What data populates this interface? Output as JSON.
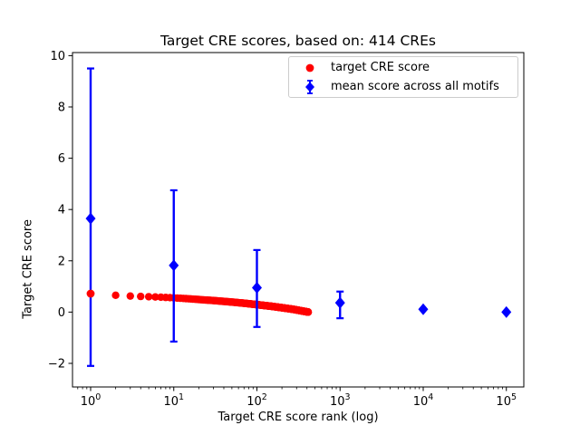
{
  "figure": {
    "title": "Target CRE scores, based on: 414 CREs"
  },
  "axes": {
    "xlabel": "Target CRE score rank (log)",
    "ylabel": "Target CRE score",
    "x_scale": "log",
    "x_tick_base": 10,
    "x_tick_exponents": [
      0,
      1,
      2,
      3,
      4,
      5
    ],
    "y_ticks": [
      -2,
      0,
      2,
      4,
      6,
      8,
      10
    ],
    "xlim_log10": [
      -0.218,
      5.21
    ],
    "ylim": [
      -2.92,
      10.12
    ]
  },
  "legend": {
    "items": [
      {
        "label": "target CRE score",
        "marker": "circle",
        "color": "#ff0000"
      },
      {
        "label": "mean score across all motifs",
        "marker": "diamond-errorbar",
        "color": "#0000ff"
      }
    ]
  },
  "chart_data": {
    "type": "scatter",
    "title": "Target CRE scores, based on: 414 CREs",
    "xlabel": "Target CRE score rank (log)",
    "ylabel": "Target CRE score",
    "x_scale": "log",
    "ylim": [
      -2.92,
      10.12
    ],
    "grid": false,
    "legend_position": "upper right",
    "series": [
      {
        "name": "target CRE score",
        "marker": "circle",
        "color": "#ff0000",
        "n_points": 414,
        "note": "scores by rank 1..414; dense curve, anchor points below, log-linear between anchors",
        "anchor_points": [
          [
            1,
            0.72
          ],
          [
            2,
            0.655
          ],
          [
            3,
            0.625
          ],
          [
            4,
            0.61
          ],
          [
            5,
            0.6
          ],
          [
            7,
            0.58
          ],
          [
            10,
            0.555
          ],
          [
            15,
            0.52
          ],
          [
            20,
            0.49
          ],
          [
            30,
            0.45
          ],
          [
            50,
            0.39
          ],
          [
            70,
            0.345
          ],
          [
            100,
            0.29
          ],
          [
            150,
            0.225
          ],
          [
            200,
            0.17
          ],
          [
            270,
            0.11
          ],
          [
            340,
            0.05
          ],
          [
            414,
            0.0
          ]
        ]
      },
      {
        "name": "mean score across all motifs",
        "marker": "diamond",
        "color": "#0000ff",
        "points": [
          {
            "x": 1,
            "y": 3.65,
            "err_low": -2.1,
            "err_high": 9.5
          },
          {
            "x": 10,
            "y": 1.82,
            "err_low": -1.15,
            "err_high": 4.75
          },
          {
            "x": 100,
            "y": 0.95,
            "err_low": -0.58,
            "err_high": 2.42
          },
          {
            "x": 1000,
            "y": 0.36,
            "err_low": -0.24,
            "err_high": 0.8
          },
          {
            "x": 10000,
            "y": 0.11,
            "err_low": 0.01,
            "err_high": 0.21
          },
          {
            "x": 100000,
            "y": 0.0,
            "err_low": -0.05,
            "err_high": 0.05
          }
        ]
      }
    ]
  }
}
